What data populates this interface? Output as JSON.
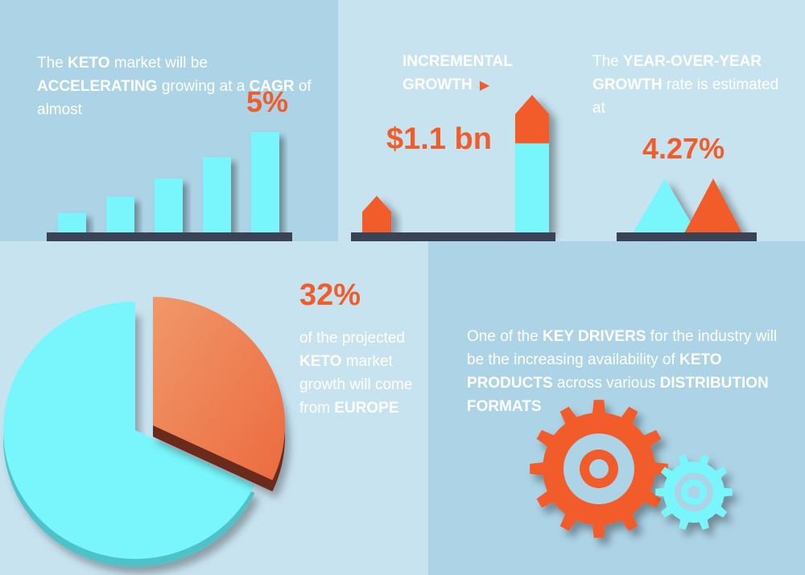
{
  "colors": {
    "cyan": "#79f6fb",
    "orange": "#f25c2b",
    "base": "#3a4356",
    "panel_dark": "#acd3e6",
    "panel_light": "#c8e3f0",
    "text": "#ffffff"
  },
  "cagr": {
    "text": [
      {
        "t": "The ",
        "b": false
      },
      {
        "t": "KETO",
        "b": true
      },
      {
        "t": " market will be ",
        "b": false
      },
      {
        "t": "ACCELERATING",
        "b": true
      },
      {
        "t": " growing at a ",
        "b": false
      },
      {
        "t": "CAGR",
        "b": true
      },
      {
        "t": " of almost",
        "b": false
      }
    ],
    "value": "5%",
    "bars": [
      0.2,
      0.36,
      0.54,
      0.75,
      1.0
    ]
  },
  "incremental": {
    "label": "INCREMENTAL GROWTH",
    "arrow_icon": "right-triangle-icon",
    "value": "$1.1 bn",
    "small_bar": 0.27,
    "large_bar": 1.0,
    "orange_fraction_of_large": 0.35
  },
  "yoy": {
    "text": [
      {
        "t": "The ",
        "b": false
      },
      {
        "t": "YEAR-OVER-YEAR GROWTH",
        "b": true
      },
      {
        "t": " rate is estimated at",
        "b": false
      }
    ],
    "value": "4.27%"
  },
  "europe": {
    "value": "32%",
    "text": [
      {
        "t": "of the projected ",
        "b": false
      },
      {
        "t": "KETO",
        "b": true
      },
      {
        "t": " market growth will come from ",
        "b": false
      },
      {
        "t": "EUROPE",
        "b": true
      }
    ],
    "pie_fraction": 0.32
  },
  "drivers": {
    "text": [
      {
        "t": "One of the ",
        "b": false
      },
      {
        "t": "KEY DRIVERS",
        "b": true
      },
      {
        "t": " for the industry will be the increasing availability of ",
        "b": false
      },
      {
        "t": "KETO PRODUCTS",
        "b": true
      },
      {
        "t": " across various ",
        "b": false
      },
      {
        "t": "DISTRIBUTION FORMATS",
        "b": true
      }
    ],
    "icons": [
      "large-gear-icon",
      "small-gear-icon"
    ]
  }
}
